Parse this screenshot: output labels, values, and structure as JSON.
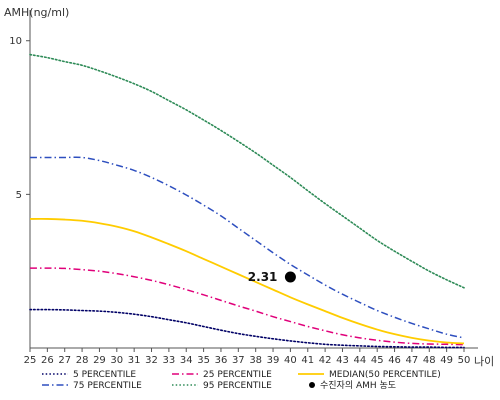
{
  "chart_data": {
    "type": "line",
    "title": "",
    "ylabel": "AMH(ng/ml)",
    "xlabel": "나이",
    "x": [
      25,
      26,
      27,
      28,
      29,
      30,
      31,
      32,
      33,
      34,
      35,
      36,
      37,
      38,
      39,
      40,
      41,
      42,
      43,
      44,
      45,
      46,
      47,
      48,
      49,
      50
    ],
    "xlim": [
      25,
      50
    ],
    "ylim": [
      0,
      11
    ],
    "yticks": [
      5,
      10
    ],
    "grid": false,
    "legend_position": "bottom",
    "series": [
      {
        "name": "5 PERCENTILE",
        "color": "#000066",
        "style": "dotted",
        "values": [
          1.25,
          1.25,
          1.24,
          1.22,
          1.2,
          1.16,
          1.1,
          1.02,
          0.92,
          0.82,
          0.7,
          0.58,
          0.47,
          0.38,
          0.3,
          0.23,
          0.17,
          0.12,
          0.09,
          0.07,
          0.05,
          0.04,
          0.03,
          0.03,
          0.02,
          0.02
        ]
      },
      {
        "name": "25 PERCENTILE",
        "color": "#e0007a",
        "style": "dashdot",
        "values": [
          2.6,
          2.6,
          2.59,
          2.55,
          2.5,
          2.42,
          2.32,
          2.2,
          2.06,
          1.9,
          1.73,
          1.55,
          1.37,
          1.2,
          1.02,
          0.86,
          0.7,
          0.56,
          0.43,
          0.33,
          0.25,
          0.19,
          0.15,
          0.13,
          0.12,
          0.11
        ]
      },
      {
        "name": "MEDIAN(50 PERCENTILE)",
        "color": "#ffcc00",
        "style": "solid",
        "values": [
          4.2,
          4.2,
          4.18,
          4.14,
          4.06,
          3.95,
          3.8,
          3.6,
          3.38,
          3.15,
          2.9,
          2.65,
          2.4,
          2.15,
          1.9,
          1.65,
          1.42,
          1.2,
          0.98,
          0.78,
          0.6,
          0.45,
          0.33,
          0.24,
          0.18,
          0.15
        ]
      },
      {
        "name": "75 PERCENTILE",
        "color": "#2e4fbf",
        "style": "dashdot",
        "values": [
          6.2,
          6.2,
          6.2,
          6.2,
          6.1,
          5.95,
          5.78,
          5.55,
          5.28,
          4.98,
          4.65,
          4.3,
          3.9,
          3.5,
          3.1,
          2.72,
          2.38,
          2.05,
          1.75,
          1.48,
          1.22,
          1.0,
          0.8,
          0.62,
          0.45,
          0.33
        ]
      },
      {
        "name": "95 PERCENTILE",
        "color": "#2e8b57",
        "style": "dotted",
        "values": [
          9.55,
          9.45,
          9.32,
          9.2,
          9.02,
          8.82,
          8.6,
          8.35,
          8.05,
          7.75,
          7.42,
          7.08,
          6.72,
          6.35,
          5.95,
          5.55,
          5.12,
          4.7,
          4.3,
          3.9,
          3.5,
          3.15,
          2.82,
          2.5,
          2.22,
          1.96
        ]
      }
    ],
    "highlight_point": {
      "name": "수진자의 AMH 농도",
      "x": 40,
      "y": 2.31,
      "label": "2.31",
      "color": "#000000"
    }
  }
}
